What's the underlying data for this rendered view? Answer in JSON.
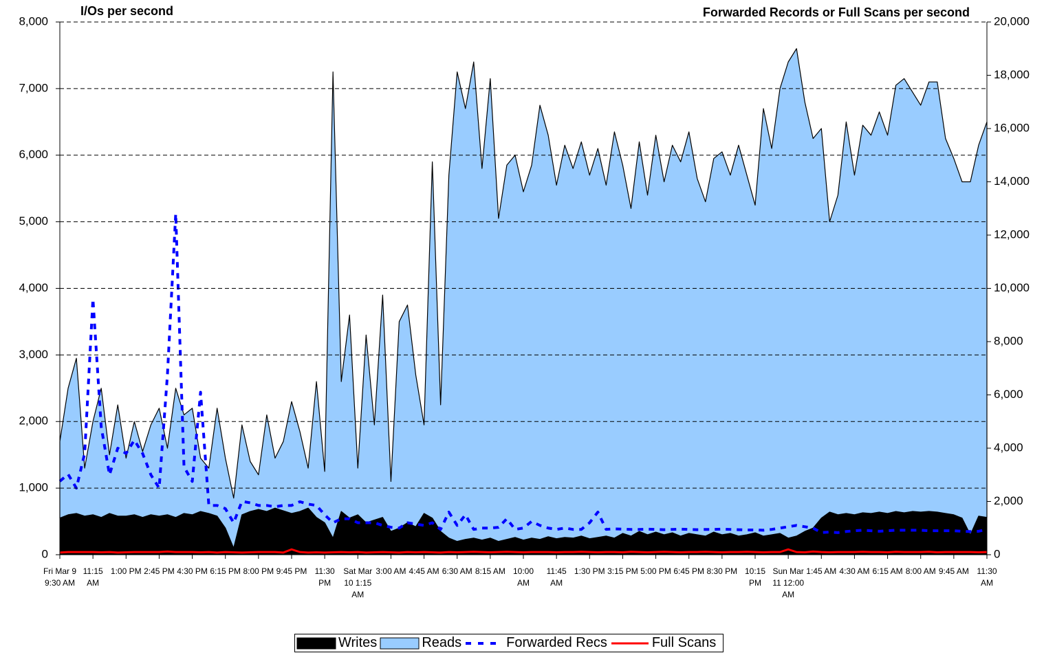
{
  "chart_data": {
    "type": "area",
    "y_label": "I/Os per second",
    "y2_label": "Forwarded Records or Full Scans per second",
    "categories": [
      "Fri Mar 9 9:30 AM",
      null,
      null,
      null,
      "11:15 AM",
      null,
      null,
      null,
      "1:00 PM",
      null,
      null,
      null,
      "2:45 PM",
      null,
      null,
      null,
      "4:30 PM",
      null,
      null,
      null,
      "6:15 PM",
      null,
      null,
      null,
      "8:00 PM",
      null,
      null,
      null,
      "9:45 PM",
      null,
      null,
      null,
      "11:30 PM",
      null,
      null,
      null,
      "Sat Mar 10 1:15 AM",
      null,
      null,
      null,
      "3:00 AM",
      null,
      null,
      null,
      "4:45 AM",
      null,
      null,
      null,
      "6:30 AM",
      null,
      null,
      null,
      "8:15 AM",
      null,
      null,
      null,
      "10:00 AM",
      null,
      null,
      null,
      "11:45 AM",
      null,
      null,
      null,
      "1:30 PM",
      null,
      null,
      null,
      "3:15 PM",
      null,
      null,
      null,
      "5:00 PM",
      null,
      null,
      null,
      "6:45 PM",
      null,
      null,
      null,
      "8:30 PM",
      null,
      null,
      null,
      "10:15 PM",
      null,
      null,
      null,
      "Sun Mar 11 12:00 AM",
      null,
      null,
      null,
      "1:45 AM",
      null,
      null,
      null,
      "4:30 AM",
      null,
      null,
      null,
      "6:15 AM",
      null,
      null,
      null,
      "8:00 AM",
      null,
      null,
      null,
      "9:45 AM",
      null,
      null,
      null,
      "11:30 AM"
    ],
    "series": [
      {
        "name": "Writes",
        "type": "area",
        "color": "#000000",
        "values": [
          550,
          600,
          620,
          580,
          600,
          560,
          620,
          580,
          580,
          600,
          560,
          600,
          580,
          600,
          560,
          620,
          600,
          650,
          620,
          580,
          400,
          100,
          600,
          650,
          680,
          650,
          700,
          660,
          620,
          650,
          700,
          560,
          480,
          250,
          650,
          550,
          600,
          480,
          520,
          560,
          350,
          400,
          480,
          420,
          620,
          550,
          350,
          250,
          200,
          230,
          250,
          220,
          250,
          200,
          230,
          260,
          220,
          250,
          230,
          270,
          240,
          260,
          250,
          280,
          240,
          260,
          280,
          250,
          320,
          280,
          350,
          300,
          340,
          300,
          330,
          280,
          320,
          300,
          280,
          340,
          300,
          320,
          280,
          300,
          330,
          280,
          300,
          320,
          250,
          280,
          350,
          400,
          550,
          640,
          600,
          620,
          600,
          630,
          620,
          640,
          620,
          650,
          630,
          650,
          640,
          650,
          640,
          620,
          600,
          550,
          300,
          580,
          560
        ]
      },
      {
        "name": "Reads",
        "type": "area",
        "color": "#99ccff",
        "values": [
          1150,
          1900,
          2330,
          720,
          1400,
          1940,
          880,
          1670,
          870,
          1400,
          990,
          1350,
          1620,
          1000,
          1940,
          1480,
          1600,
          800,
          680,
          1620,
          1050,
          750,
          1350,
          750,
          520,
          1450,
          750,
          1040,
          1680,
          1200,
          600,
          2040,
          770,
          7000,
          1950,
          3050,
          700,
          2820,
          1430,
          3340,
          750,
          3100,
          3270,
          2280,
          1330,
          5350,
          1900,
          5450,
          7050,
          6470,
          7150,
          5580,
          6900,
          4850,
          5620,
          5740,
          5230,
          5600,
          6520,
          6030,
          5310,
          5890,
          5550,
          5920,
          5460,
          5840,
          5270,
          6100,
          5530,
          4920,
          5850,
          5100,
          5960,
          5300,
          5820,
          5620,
          6030,
          5350,
          5020,
          5610,
          5750,
          5380,
          5870,
          5400,
          4920,
          6420,
          5800,
          6680,
          7150,
          7320,
          6450,
          5850,
          5850,
          4360,
          4800,
          5880,
          5100,
          5820,
          5680,
          6010,
          5680,
          6400,
          6520,
          6300,
          6110,
          6450,
          6460,
          5630,
          5350,
          5050,
          5300,
          5570,
          5940
        ]
      },
      {
        "name": "Forwarded Recs",
        "type": "line",
        "axis": "y2",
        "dashed": true,
        "color": "#0000ff",
        "values": [
          2760,
          3020,
          2500,
          3800,
          9600,
          4800,
          3000,
          4000,
          3800,
          4300,
          3800,
          3000,
          2500,
          6760,
          12800,
          3300,
          2750,
          6100,
          1850,
          1850,
          1730,
          1200,
          2000,
          1950,
          1850,
          1850,
          1800,
          1850,
          1850,
          1990,
          1900,
          1850,
          1500,
          1200,
          1350,
          1350,
          1200,
          1200,
          1200,
          1100,
          1030,
          1000,
          1200,
          1150,
          1100,
          1200,
          950,
          1600,
          1100,
          1500,
          950,
          1000,
          1000,
          1030,
          1350,
          950,
          1000,
          1250,
          1100,
          1000,
          950,
          1000,
          950,
          950,
          1200,
          1600,
          950,
          970,
          960,
          950,
          950,
          960,
          950,
          940,
          950,
          960,
          950,
          940,
          950,
          950,
          960,
          950,
          940,
          930,
          930,
          920,
          950,
          1000,
          1050,
          1100,
          1050,
          1000,
          830,
          850,
          830,
          870,
          900,
          920,
          900,
          880,
          900,
          920,
          920,
          920,
          920,
          900,
          900,
          900,
          900,
          880,
          870,
          880,
          950
        ]
      },
      {
        "name": "Full Scans",
        "type": "line",
        "axis": "y2",
        "color": "#ff0000",
        "values": [
          80,
          100,
          100,
          100,
          100,
          90,
          100,
          80,
          90,
          100,
          100,
          100,
          100,
          120,
          100,
          100,
          100,
          90,
          100,
          80,
          100,
          90,
          80,
          90,
          100,
          100,
          100,
          80,
          200,
          100,
          80,
          90,
          80,
          90,
          100,
          90,
          100,
          80,
          90,
          100,
          90,
          80,
          100,
          90,
          100,
          90,
          80,
          100,
          90,
          100,
          110,
          100,
          90,
          100,
          110,
          100,
          90,
          100,
          100,
          100,
          90,
          100,
          100,
          110,
          100,
          90,
          100,
          100,
          90,
          110,
          100,
          90,
          100,
          110,
          100,
          90,
          100,
          100,
          110,
          100,
          90,
          100,
          100,
          110,
          100,
          90,
          100,
          100,
          200,
          100,
          90,
          120,
          100,
          90,
          100,
          100,
          100,
          110,
          100,
          100,
          90,
          110,
          100,
          100,
          100,
          110,
          90,
          100,
          100,
          100,
          100,
          90,
          100
        ]
      }
    ],
    "ylim": [
      0,
      8000
    ],
    "yticks": [
      0,
      {
        "value": 1000,
        "label": "1,000"
      },
      {
        "value": 2000,
        "label": "2,000"
      },
      {
        "value": 3000,
        "label": "3,000"
      },
      {
        "value": 4000,
        "label": "4,000"
      },
      {
        "value": 5000,
        "label": "5,000"
      },
      {
        "value": 6000,
        "label": "6,000"
      },
      {
        "value": 7000,
        "label": "7,000"
      },
      {
        "value": 8000,
        "label": "8,000"
      }
    ],
    "y2lim": [
      0,
      20000
    ],
    "y2ticks": [
      0,
      {
        "value": 2000,
        "label": "2,000"
      },
      {
        "value": 4000,
        "label": "4,000"
      },
      {
        "value": 6000,
        "label": "6,000"
      },
      {
        "value": 8000,
        "label": "8,000"
      },
      {
        "value": 10000,
        "label": "10,000"
      },
      {
        "value": 12000,
        "label": "12,000"
      },
      {
        "value": 14000,
        "label": "14,000"
      },
      {
        "value": 16000,
        "label": "16,000"
      },
      {
        "value": 18000,
        "label": "18,000"
      },
      {
        "value": 20000,
        "label": "20,000"
      }
    ],
    "grid": true,
    "legend": "bottom"
  }
}
